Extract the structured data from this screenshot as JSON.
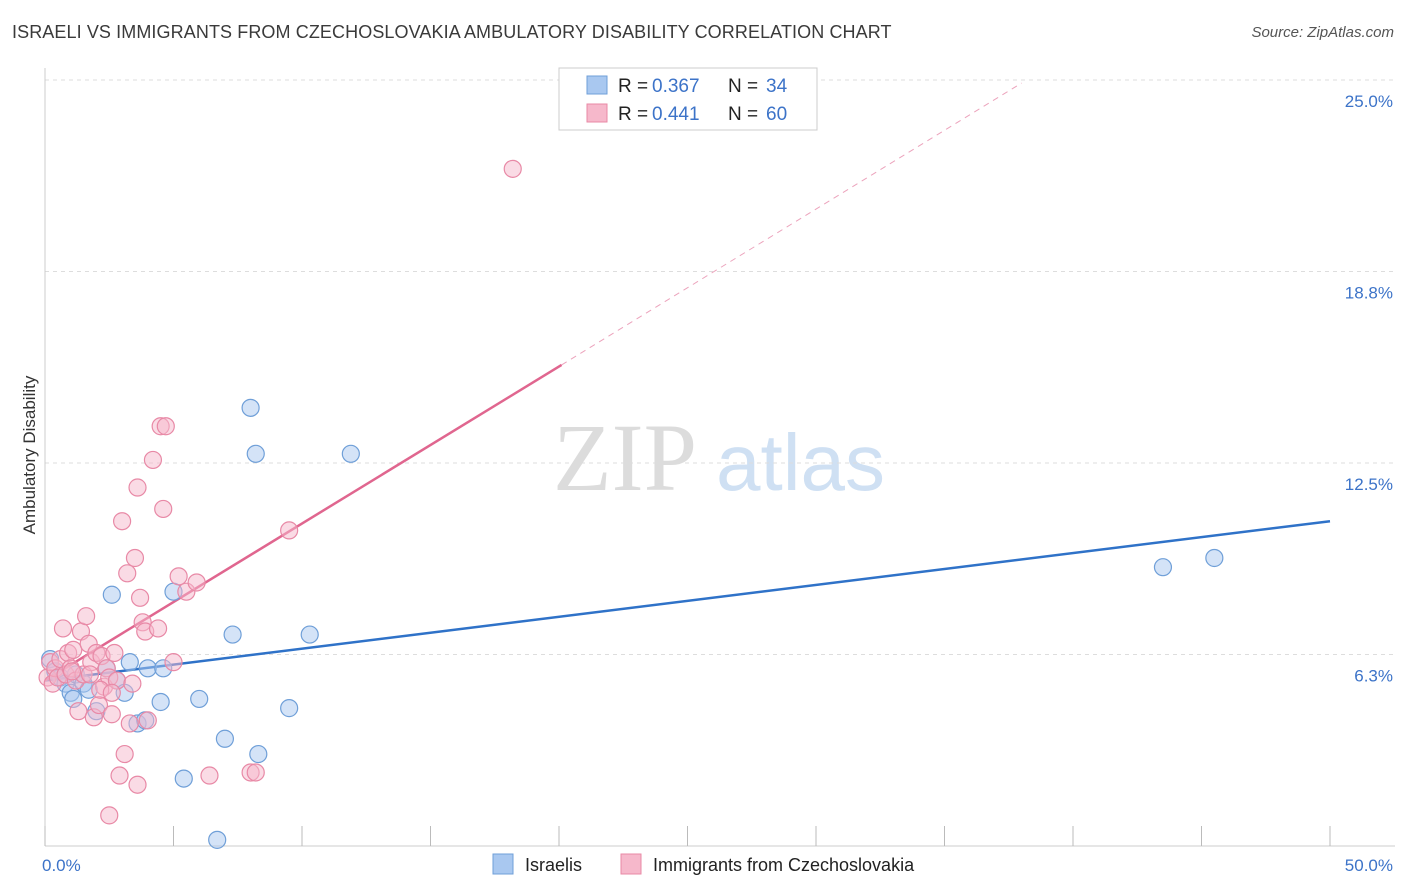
{
  "chart_data": {
    "type": "scatter",
    "title": "ISRAELI VS IMMIGRANTS FROM CZECHOSLOVAKIA AMBULATORY DISABILITY CORRELATION CHART",
    "source": "Source: ZipAtlas.com",
    "ylabel": "Ambulatory Disability",
    "xlabel": "",
    "xlim": [
      0,
      50
    ],
    "ylim": [
      0,
      25
    ],
    "y_ticks": [
      {
        "value": 6.25,
        "label": "6.3%"
      },
      {
        "value": 12.5,
        "label": "12.5%"
      },
      {
        "value": 18.75,
        "label": "18.8%"
      },
      {
        "value": 25.0,
        "label": "25.0%"
      }
    ],
    "x_ticks": [
      {
        "value": 0,
        "label": "0.0%"
      },
      {
        "value": 50,
        "label": "50.0%"
      }
    ],
    "legend": [
      {
        "r_label": "R =",
        "r_value": "0.367",
        "n_label": "N =",
        "n_value": "34"
      },
      {
        "r_label": "R =",
        "r_value": "0.441",
        "n_label": "N =",
        "n_value": "60"
      }
    ],
    "watermark": {
      "zip": "ZIP",
      "atlas": "atlas"
    },
    "colors": {
      "blue_fill": "#a9c8f0",
      "blue_stroke": "#6f9fd8",
      "blue_line": "#2f72c8",
      "pink_fill": "#f6b8cb",
      "pink_stroke": "#e889a6",
      "pink_line": "#e0668f",
      "grid": "#dddddd",
      "axis_text": "#3c73c8"
    },
    "series": [
      {
        "name": "Israelis",
        "color": "#a9c8f0",
        "trend": {
          "x0": 0,
          "y0": 5.4,
          "x1": 50,
          "y1": 10.6,
          "dashed_to": null
        },
        "points": [
          [
            0.2,
            6.1
          ],
          [
            0.4,
            5.7
          ],
          [
            0.6,
            5.5
          ],
          [
            0.8,
            5.3
          ],
          [
            1.0,
            5.0
          ],
          [
            1.1,
            4.8
          ],
          [
            1.2,
            5.6
          ],
          [
            1.5,
            5.3
          ],
          [
            1.7,
            5.1
          ],
          [
            2.0,
            4.4
          ],
          [
            2.4,
            5.8
          ],
          [
            2.6,
            8.2
          ],
          [
            2.8,
            5.4
          ],
          [
            3.1,
            5.0
          ],
          [
            3.3,
            6.0
          ],
          [
            3.6,
            4.0
          ],
          [
            3.9,
            4.1
          ],
          [
            4.0,
            5.8
          ],
          [
            4.5,
            4.7
          ],
          [
            4.6,
            5.8
          ],
          [
            5.0,
            8.3
          ],
          [
            5.4,
            2.2
          ],
          [
            6.0,
            4.8
          ],
          [
            6.7,
            0.2
          ],
          [
            7.0,
            3.5
          ],
          [
            7.3,
            6.9
          ],
          [
            8.0,
            14.3
          ],
          [
            8.2,
            12.8
          ],
          [
            8.3,
            3.0
          ],
          [
            9.5,
            4.5
          ],
          [
            10.3,
            6.9
          ],
          [
            11.9,
            12.8
          ],
          [
            43.5,
            9.1
          ],
          [
            45.5,
            9.4
          ]
        ]
      },
      {
        "name": "Immigrants from Czechoslovakia",
        "color": "#f6b8cb",
        "trend": {
          "x0": 0,
          "y0": 5.4,
          "x1": 20.1,
          "y1": 15.7,
          "dashed_to": {
            "x": 38.0,
            "y": 24.9
          }
        },
        "points": [
          [
            0.1,
            5.5
          ],
          [
            0.2,
            6.0
          ],
          [
            0.3,
            5.3
          ],
          [
            0.4,
            5.8
          ],
          [
            0.5,
            5.5
          ],
          [
            0.6,
            6.1
          ],
          [
            0.7,
            7.1
          ],
          [
            0.8,
            5.6
          ],
          [
            0.9,
            6.3
          ],
          [
            1.0,
            5.8
          ],
          [
            1.1,
            6.4
          ],
          [
            1.2,
            5.4
          ],
          [
            1.3,
            4.4
          ],
          [
            1.4,
            7.0
          ],
          [
            1.5,
            5.6
          ],
          [
            1.6,
            7.5
          ],
          [
            1.7,
            6.6
          ],
          [
            1.8,
            6.0
          ],
          [
            1.9,
            4.2
          ],
          [
            2.0,
            6.3
          ],
          [
            2.1,
            4.6
          ],
          [
            2.2,
            6.2
          ],
          [
            2.3,
            5.2
          ],
          [
            2.4,
            5.8
          ],
          [
            2.5,
            5.5
          ],
          [
            2.6,
            4.3
          ],
          [
            2.7,
            6.3
          ],
          [
            2.8,
            5.4
          ],
          [
            2.9,
            2.3
          ],
          [
            3.0,
            10.6
          ],
          [
            3.1,
            3.0
          ],
          [
            3.2,
            8.9
          ],
          [
            3.3,
            4.0
          ],
          [
            3.4,
            5.3
          ],
          [
            3.5,
            9.4
          ],
          [
            3.6,
            11.7
          ],
          [
            3.7,
            8.1
          ],
          [
            3.8,
            7.3
          ],
          [
            3.9,
            7.0
          ],
          [
            4.0,
            4.1
          ],
          [
            4.2,
            12.6
          ],
          [
            4.4,
            7.1
          ],
          [
            4.5,
            13.7
          ],
          [
            4.6,
            11.0
          ],
          [
            2.5,
            1.0
          ],
          [
            3.6,
            2.0
          ],
          [
            4.7,
            13.7
          ],
          [
            5.0,
            6.0
          ],
          [
            5.2,
            8.8
          ],
          [
            5.5,
            8.3
          ],
          [
            5.9,
            8.6
          ],
          [
            6.4,
            2.3
          ],
          [
            8.0,
            2.4
          ],
          [
            8.2,
            2.4
          ],
          [
            9.5,
            10.3
          ],
          [
            18.2,
            22.1
          ],
          [
            1.05,
            5.7
          ],
          [
            1.75,
            5.6
          ],
          [
            2.15,
            5.1
          ],
          [
            2.6,
            5.0
          ]
        ]
      }
    ]
  }
}
